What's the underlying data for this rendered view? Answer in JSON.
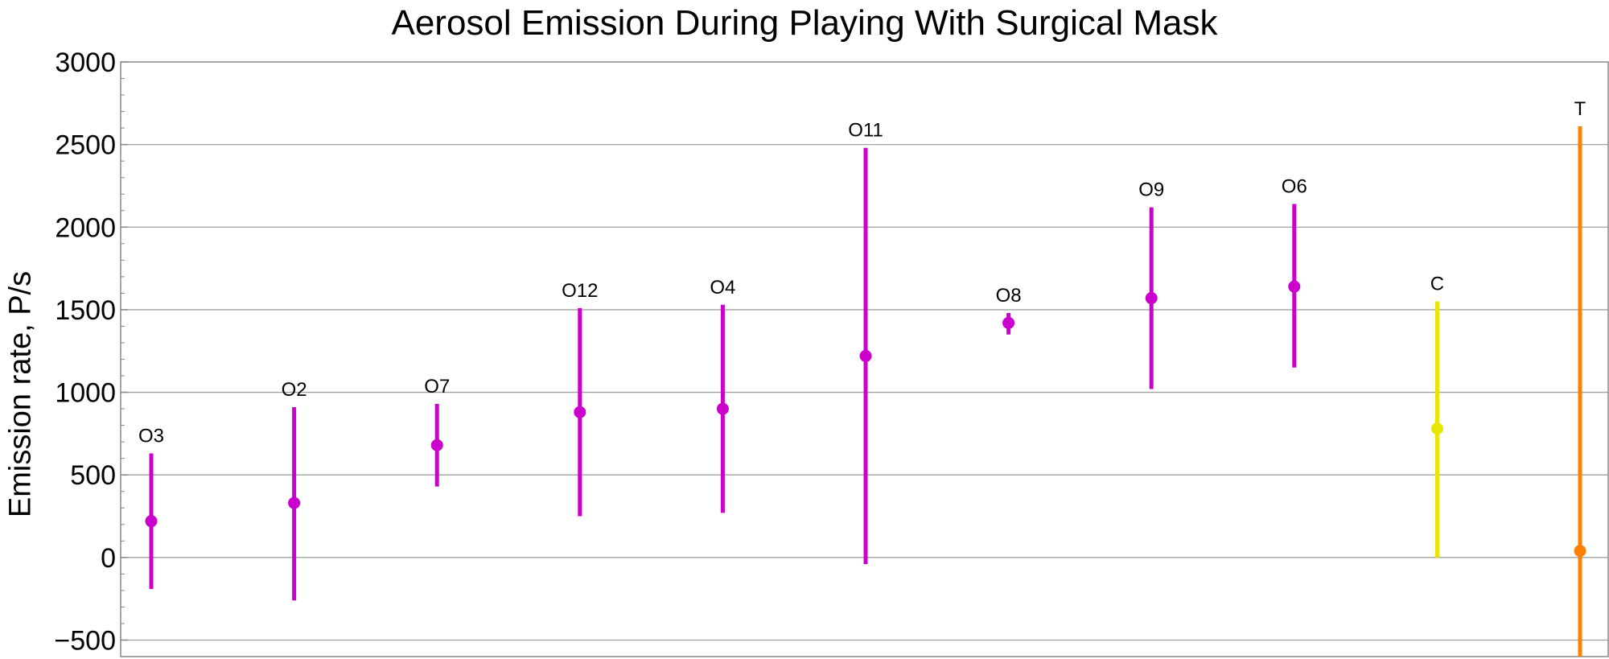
{
  "chart_data": {
    "type": "scatter",
    "title": "Aerosol Emission During Playing With Surgical Mask",
    "xlabel": "",
    "ylabel": "Emission rate,  P/s",
    "ylim": [
      -600,
      3000
    ],
    "yticks": [
      -500,
      0,
      500,
      1000,
      1500,
      2000,
      2500,
      3000
    ],
    "grid": true,
    "points": [
      {
        "label": "O3",
        "value": 220,
        "low": -190,
        "high": 630,
        "color": "#cc00cc"
      },
      {
        "label": "O2",
        "value": 330,
        "low": -260,
        "high": 910,
        "color": "#cc00cc"
      },
      {
        "label": "O7",
        "value": 680,
        "low": 430,
        "high": 930,
        "color": "#cc00cc"
      },
      {
        "label": "O12",
        "value": 880,
        "low": 250,
        "high": 1510,
        "color": "#cc00cc"
      },
      {
        "label": "O4",
        "value": 900,
        "low": 270,
        "high": 1530,
        "color": "#cc00cc"
      },
      {
        "label": "O11",
        "value": 1220,
        "low": -40,
        "high": 2480,
        "color": "#cc00cc"
      },
      {
        "label": "O8",
        "value": 1420,
        "low": 1350,
        "high": 1480,
        "color": "#cc00cc"
      },
      {
        "label": "O9",
        "value": 1570,
        "low": 1020,
        "high": 2120,
        "color": "#cc00cc"
      },
      {
        "label": "O6",
        "value": 1640,
        "low": 1150,
        "high": 2140,
        "color": "#cc00cc"
      },
      {
        "label": "C",
        "value": 780,
        "low": 0,
        "high": 1550,
        "color": "#e6e600"
      },
      {
        "label": "T",
        "value": 40,
        "low": -600,
        "high": 2610,
        "color": "#ff8000"
      }
    ]
  }
}
